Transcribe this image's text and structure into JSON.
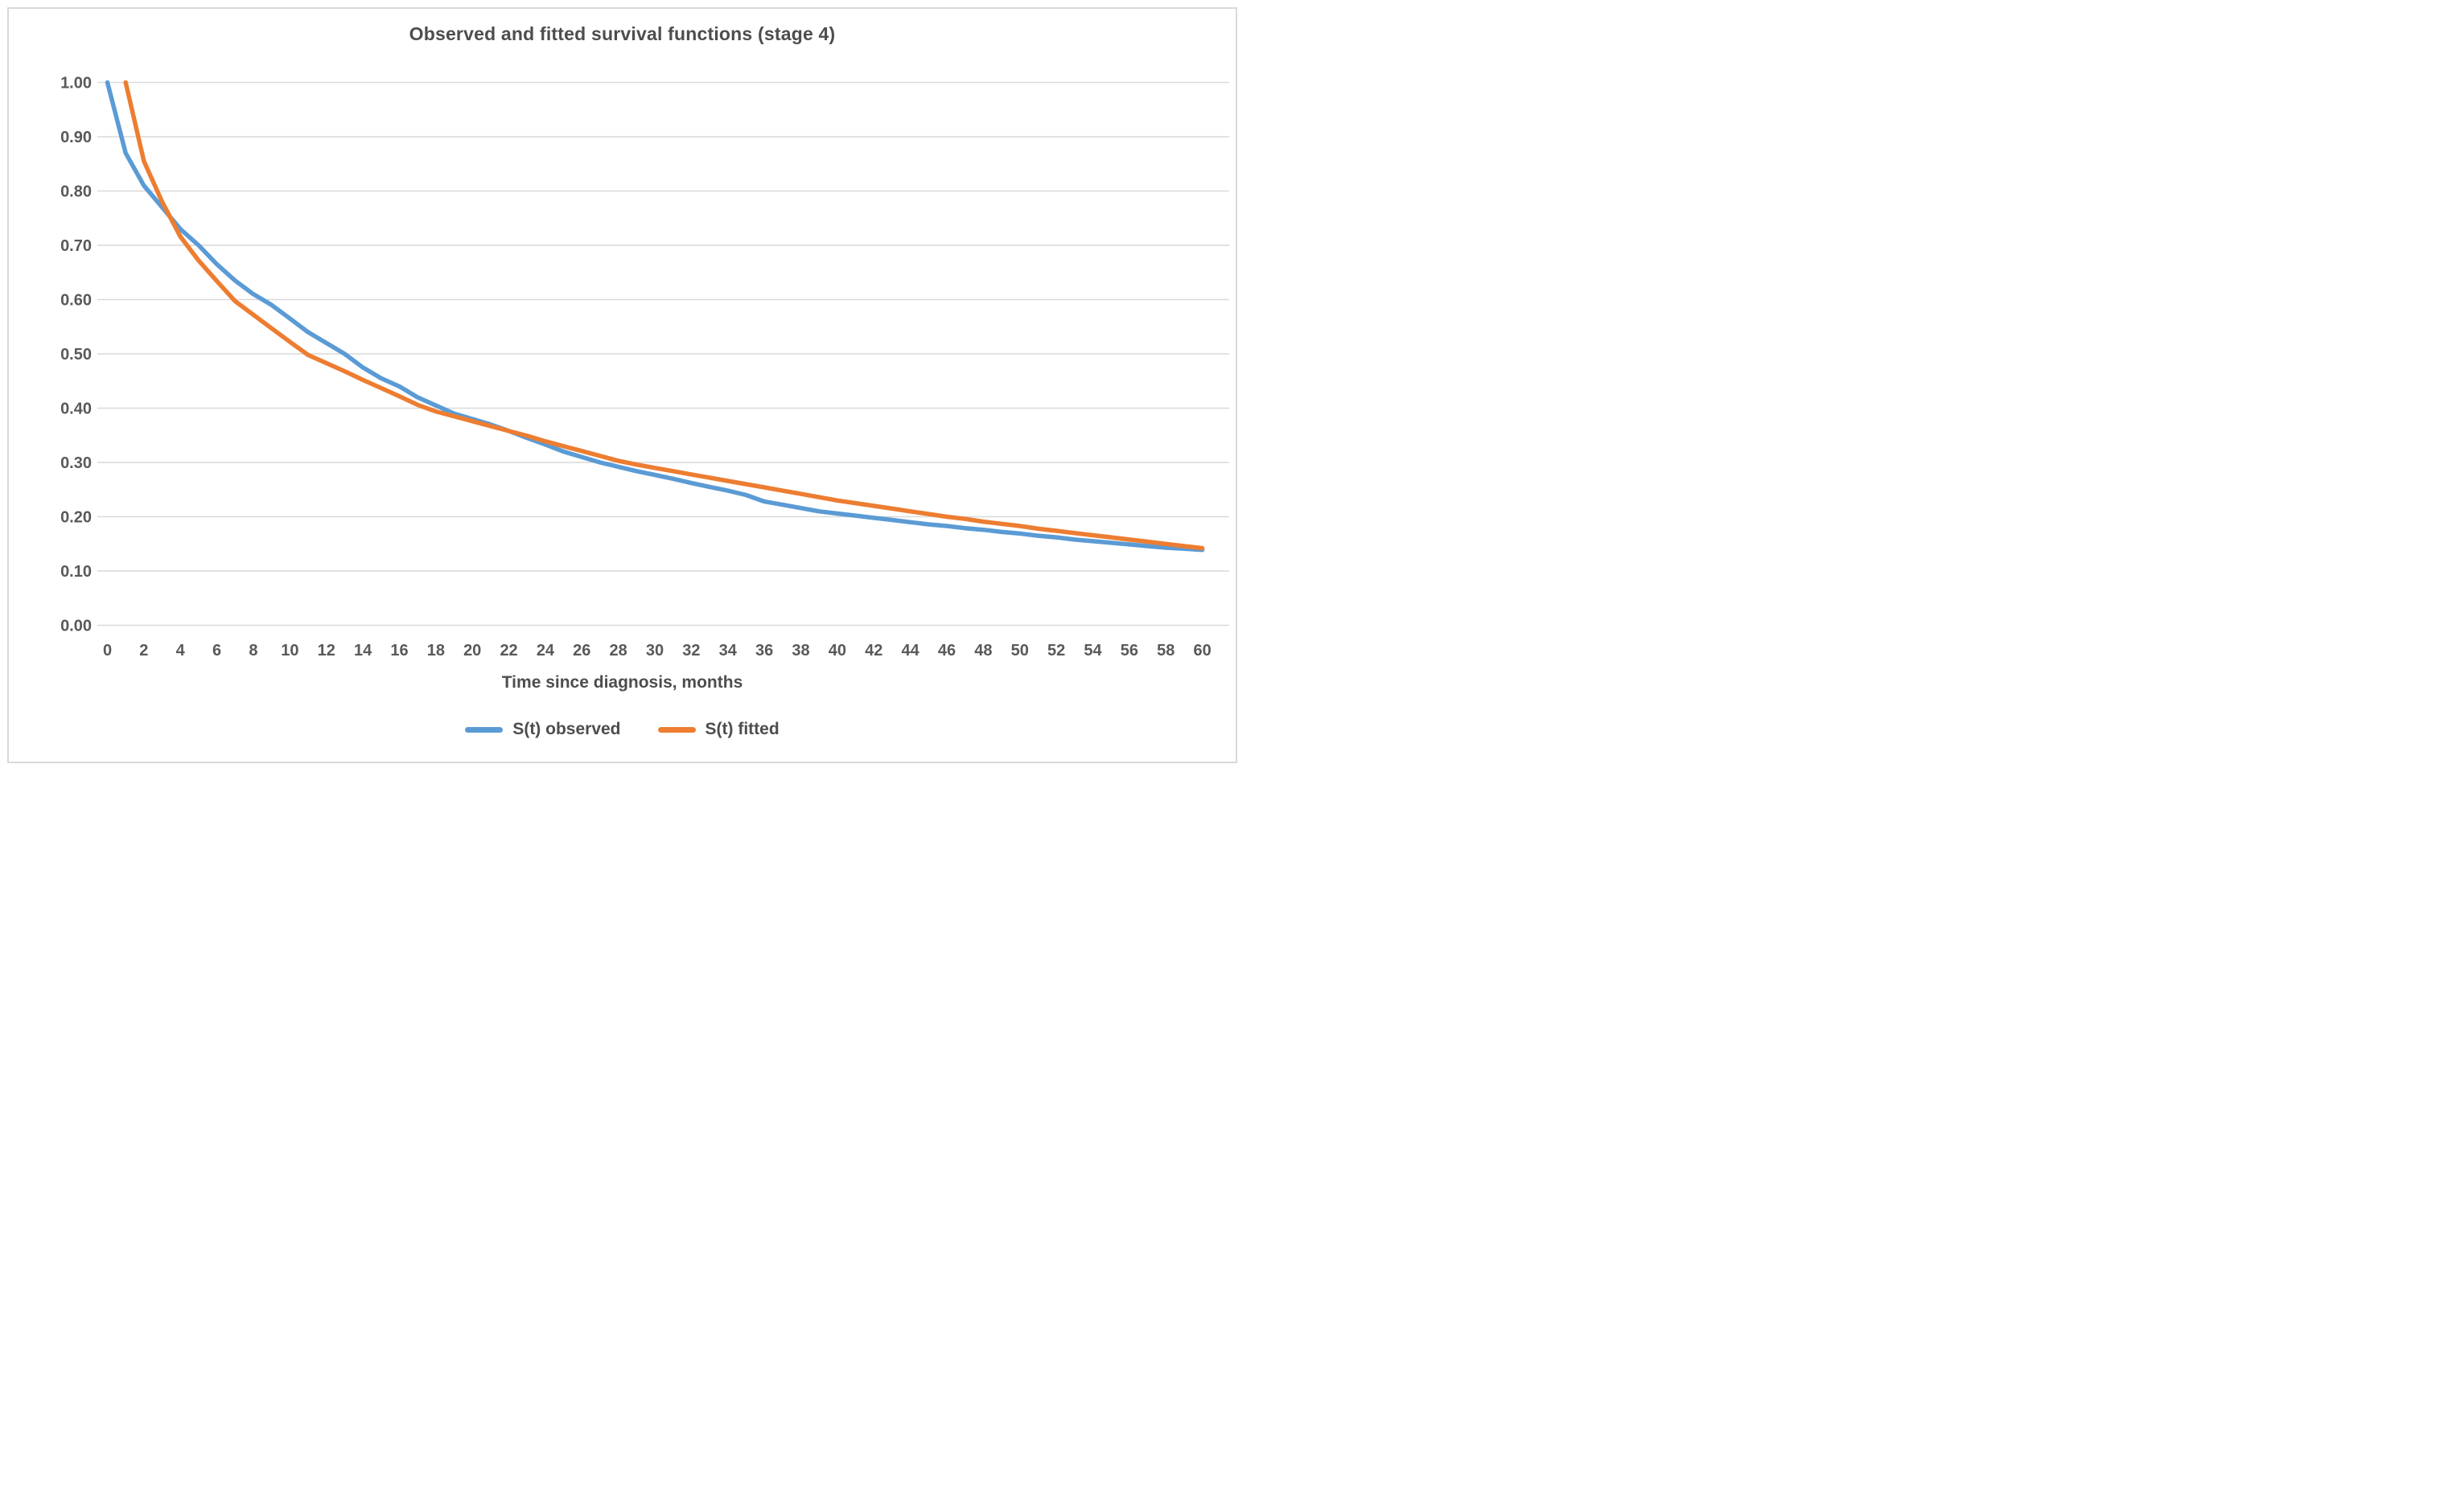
{
  "chart": {
    "title": "Observed and fitted survival functions (stage 4)",
    "x_axis": {
      "title": "Time since diagnosis, months",
      "tick_labels": [
        "0",
        "2",
        "4",
        "6",
        "8",
        "10",
        "12",
        "14",
        "16",
        "18",
        "20",
        "22",
        "24",
        "26",
        "28",
        "30",
        "32",
        "34",
        "36",
        "38",
        "40",
        "42",
        "44",
        "46",
        "48",
        "50",
        "52",
        "54",
        "56",
        "58",
        "60"
      ]
    },
    "y_axis": {
      "tick_labels": [
        "1.00",
        "0.90",
        "0.80",
        "0.70",
        "0.60",
        "0.50",
        "0.40",
        "0.30",
        "0.20",
        "0.10",
        "0.00"
      ]
    },
    "legend": {
      "observed_label": "S(t) observed",
      "fitted_label": "S(t) fitted"
    },
    "colors": {
      "observed": "#5B9BD5",
      "fitted": "#ED7D31",
      "gridline": "#D9D9D9",
      "text": "#595959"
    }
  },
  "chart_data": {
    "type": "line",
    "title": "Observed and fitted survival functions (stage 4)",
    "xlabel": "Time since diagnosis, months",
    "ylabel": "",
    "xlim": [
      0,
      60
    ],
    "ylim": [
      0,
      1
    ],
    "grid": "horizontal",
    "legend_position": "bottom",
    "x": [
      0,
      1,
      2,
      3,
      4,
      5,
      6,
      7,
      8,
      9,
      10,
      11,
      12,
      13,
      14,
      15,
      16,
      17,
      18,
      19,
      20,
      21,
      22,
      23,
      24,
      25,
      26,
      27,
      28,
      29,
      30,
      31,
      32,
      33,
      34,
      35,
      36,
      37,
      38,
      39,
      40,
      41,
      42,
      43,
      44,
      45,
      46,
      47,
      48,
      49,
      50,
      51,
      52,
      53,
      54,
      55,
      56,
      57,
      58,
      59,
      60
    ],
    "series": [
      {
        "name": "S(t) observed",
        "color": "#5B9BD5",
        "values": [
          1.0,
          0.87,
          0.81,
          0.77,
          0.73,
          0.7,
          0.665,
          0.635,
          0.61,
          0.59,
          0.565,
          0.54,
          0.52,
          0.5,
          0.475,
          0.455,
          0.44,
          0.42,
          0.405,
          0.39,
          0.38,
          0.37,
          0.358,
          0.345,
          0.333,
          0.32,
          0.31,
          0.3,
          0.292,
          0.284,
          0.277,
          0.27,
          0.262,
          0.255,
          0.248,
          0.24,
          0.228,
          0.222,
          0.216,
          0.21,
          0.206,
          0.202,
          0.198,
          0.194,
          0.19,
          0.186,
          0.183,
          0.179,
          0.176,
          0.172,
          0.169,
          0.165,
          0.162,
          0.158,
          0.155,
          0.152,
          0.149,
          0.146,
          0.143,
          0.141,
          0.139
        ]
      },
      {
        "name": "S(t) fitted",
        "color": "#ED7D31",
        "values": [
          null,
          1.0,
          0.855,
          0.78,
          0.716,
          0.672,
          0.634,
          0.597,
          0.572,
          0.547,
          0.522,
          0.498,
          0.483,
          0.468,
          0.452,
          0.437,
          0.422,
          0.406,
          0.394,
          0.385,
          0.376,
          0.367,
          0.358,
          0.349,
          0.339,
          0.33,
          0.321,
          0.312,
          0.303,
          0.296,
          0.29,
          0.284,
          0.278,
          0.272,
          0.266,
          0.26,
          0.254,
          0.248,
          0.242,
          0.236,
          0.23,
          0.225,
          0.22,
          0.215,
          0.21,
          0.205,
          0.2,
          0.196,
          0.191,
          0.187,
          0.183,
          0.178,
          0.174,
          0.17,
          0.166,
          0.162,
          0.158,
          0.154,
          0.15,
          0.146,
          0.142
        ]
      }
    ]
  }
}
